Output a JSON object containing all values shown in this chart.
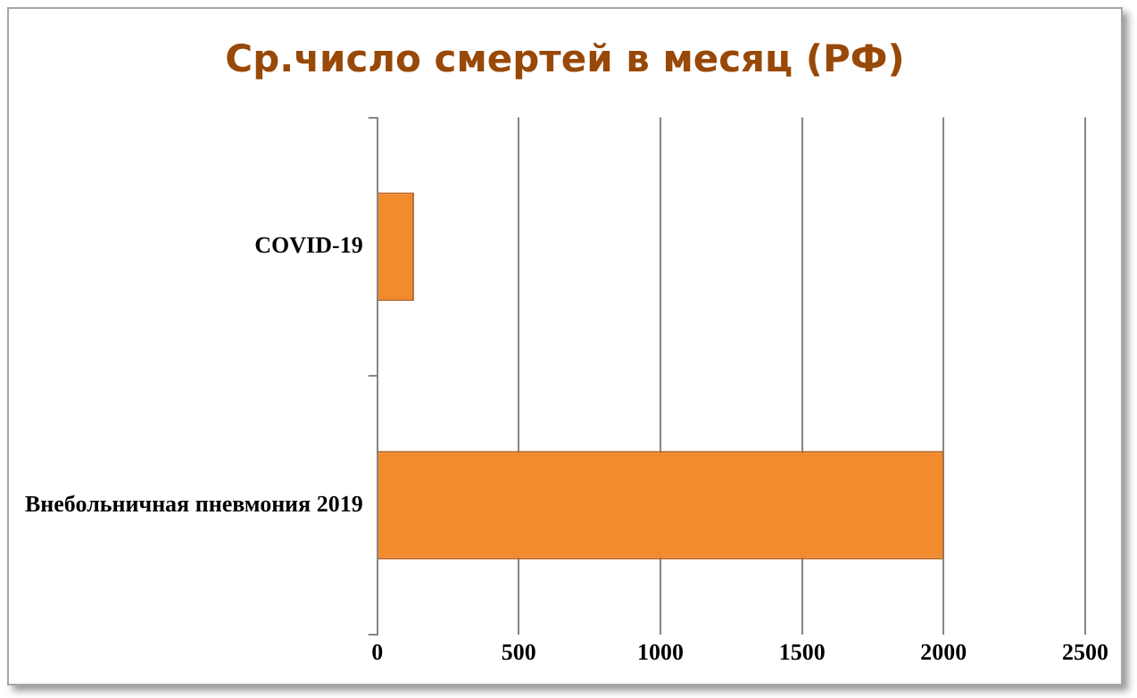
{
  "chart_data": {
    "type": "bar",
    "orientation": "horizontal",
    "title": "Ср.число смертей в месяц (РФ)",
    "categories": [
      "COVID-19",
      "Внебольничная пневмония 2019"
    ],
    "values": [
      130,
      2000
    ],
    "color": "#f28a2e",
    "xlim": [
      0,
      2500
    ],
    "xticks": [
      0,
      500,
      1000,
      1500,
      2000,
      2500
    ],
    "grid": "x",
    "legend": false
  }
}
